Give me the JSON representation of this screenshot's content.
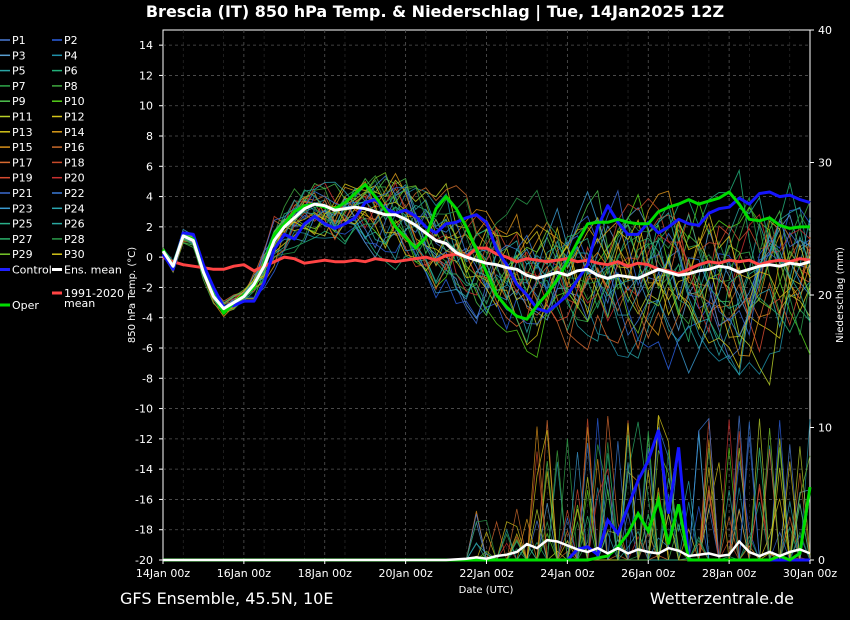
{
  "chart_data": {
    "type": "line",
    "title": "Brescia  (IT)  850 hPa Temp. & Niederschlag | Tue, 14Jan2025 12Z",
    "ylabel": "850 hPa Temp. (°C)",
    "y2label": "Niederschlag (mm)",
    "xlabel": "Date (UTC)",
    "ylim": [
      -20,
      15
    ],
    "y2lim": [
      0,
      40
    ],
    "xlim": [
      0,
      16
    ],
    "x_ticks": [
      {
        "x": 0,
        "label": "14Jan 00z"
      },
      {
        "x": 2,
        "label": "16Jan 00z"
      },
      {
        "x": 4,
        "label": "18Jan 00z"
      },
      {
        "x": 6,
        "label": "20Jan 00z"
      },
      {
        "x": 8,
        "label": "22Jan 00z"
      },
      {
        "x": 10,
        "label": "24Jan 00z"
      },
      {
        "x": 12,
        "label": "26Jan 00z"
      },
      {
        "x": 14,
        "label": "28Jan 00z"
      },
      {
        "x": 16,
        "label": "30Jan 00z"
      }
    ],
    "y_ticks": [
      14,
      12,
      10,
      8,
      6,
      4,
      2,
      0,
      -2,
      -4,
      -6,
      -8,
      -10,
      -12,
      -14,
      -16,
      -18,
      -20
    ],
    "y2_ticks": [
      40,
      30,
      20,
      10,
      0
    ],
    "grid": true,
    "legend_position": "left",
    "legend": [
      [
        "P1",
        "P2"
      ],
      [
        "P3",
        "P4"
      ],
      [
        "P5",
        "P6"
      ],
      [
        "P7",
        "P8"
      ],
      [
        "P9",
        "P10"
      ],
      [
        "P11",
        "P12"
      ],
      [
        "P13",
        "P14"
      ],
      [
        "P15",
        "P16"
      ],
      [
        "P17",
        "P18"
      ],
      [
        "P19",
        "P20"
      ],
      [
        "P21",
        "P22"
      ],
      [
        "P23",
        "P24"
      ],
      [
        "P25",
        "P26"
      ],
      [
        "P27",
        "P28"
      ],
      [
        "P29",
        "P30"
      ],
      [
        "Control",
        "Ens. mean"
      ]
    ],
    "legend_colors": [
      [
        "#4a7bd6",
        "#2a5fe0"
      ],
      [
        "#5a9fd0",
        "#1f8fa8"
      ],
      [
        "#2aa5a5",
        "#22b07a"
      ],
      [
        "#2ea64a",
        "#3fa83f"
      ],
      [
        "#4fc44f",
        "#55d11a"
      ],
      [
        "#b8cf2a",
        "#d4c41a"
      ],
      [
        "#d4c41a",
        "#d89a1a"
      ],
      [
        "#d8901a",
        "#c96a2a"
      ],
      [
        "#d86a30",
        "#c84a2a"
      ],
      [
        "#d64a30",
        "#c83030"
      ],
      [
        "#3a6ad0",
        "#3a7ad8"
      ],
      [
        "#3a9ad0",
        "#2aa5b0"
      ],
      [
        "#2ab08a",
        "#2aa8a0"
      ],
      [
        "#2ab06a",
        "#2a9a4a"
      ],
      [
        "#78c82a",
        "#d4c41a"
      ],
      [
        "#2020ff",
        "#ffffff"
      ]
    ],
    "legend_extra": [
      {
        "label": "1991-2020",
        "label2": "mean",
        "color": "#ff4444"
      },
      {
        "label": "Oper",
        "color": "#00dd00"
      }
    ],
    "series": [
      {
        "name": "Control",
        "color": "#1515ff",
        "x": [
          0,
          0.25,
          0.5,
          0.75,
          1,
          1.25,
          1.5,
          1.75,
          2,
          2.25,
          2.5,
          2.75,
          3,
          3.25,
          3.5,
          3.75,
          4,
          4.25,
          4.5,
          4.75,
          5,
          5.25,
          5.5,
          5.75,
          6,
          6.25,
          6.5,
          6.75,
          7,
          7.25,
          7.5,
          7.75,
          8,
          8.25,
          8.5,
          8.75,
          9,
          9.25,
          9.5,
          9.75,
          10,
          10.25,
          10.5,
          10.75,
          11,
          11.25,
          11.5,
          11.75,
          12,
          12.25,
          12.5,
          12.75,
          13,
          13.25,
          13.5,
          13.75,
          14,
          14.25,
          14.5,
          14.75,
          15,
          15.25,
          15.5,
          15.75,
          16
        ],
        "y": [
          0.2,
          -0.8,
          1.6,
          1.5,
          -0.5,
          -2.0,
          -3.3,
          -3.2,
          -2.9,
          -2.9,
          -1.7,
          0.5,
          1.5,
          1.2,
          2.2,
          2.7,
          2.2,
          1.9,
          2.2,
          2.6,
          3.6,
          3.8,
          3.2,
          2.9,
          3.1,
          2.7,
          2.0,
          1.6,
          2.2,
          2.3,
          2.6,
          2.8,
          2.3,
          0.5,
          -0.5,
          -1.8,
          -2.5,
          -3.4,
          -3.6,
          -3.1,
          -2.5,
          -1.5,
          -0.5,
          2.0,
          3.4,
          2.3,
          1.5,
          1.5,
          2.3,
          1.6,
          2.0,
          2.5,
          2.2,
          2.1,
          2.9,
          3.2,
          3.3,
          3.9,
          3.5,
          4.2,
          4.3,
          4.0,
          4.1,
          3.8,
          3.6
        ]
      },
      {
        "name": "Oper",
        "color": "#00dd00",
        "x": [
          0,
          0.25,
          0.5,
          0.75,
          1,
          1.25,
          1.5,
          1.75,
          2,
          2.25,
          2.5,
          2.75,
          3,
          3.25,
          3.5,
          3.75,
          4,
          4.25,
          4.5,
          4.75,
          5,
          5.25,
          5.5,
          5.75,
          6,
          6.25,
          6.5,
          6.75,
          7,
          7.25,
          7.5,
          7.75,
          8,
          8.25,
          8.5,
          8.75,
          9,
          9.25,
          9.5,
          9.75,
          10,
          10.25,
          10.5,
          10.75,
          11,
          11.25,
          11.5,
          11.75,
          12,
          12.25,
          12.5,
          12.75,
          13,
          13.25,
          13.5,
          13.75,
          14,
          14.25,
          14.5,
          14.75,
          15,
          15.25,
          15.5,
          15.75,
          16
        ],
        "y": [
          0.5,
          -0.6,
          1.4,
          1.2,
          -1.0,
          -2.5,
          -3.7,
          -3.0,
          -2.5,
          -2.0,
          -0.5,
          1.5,
          2.2,
          3.0,
          3.4,
          3.5,
          3.3,
          3.2,
          3.6,
          4.2,
          4.8,
          4.0,
          3.1,
          2.0,
          1.3,
          0.6,
          1.3,
          3.2,
          4.0,
          3.2,
          2.0,
          0.5,
          -1.0,
          -2.5,
          -3.3,
          -3.9,
          -4.1,
          -3.2,
          -2.4,
          -1.5,
          -0.3,
          1.0,
          2.2,
          2.3,
          2.3,
          2.5,
          2.3,
          2.2,
          2.2,
          3.0,
          3.3,
          3.5,
          3.8,
          3.5,
          3.7,
          3.9,
          4.3,
          3.5,
          2.5,
          2.4,
          2.6,
          2.1,
          1.9,
          2.0,
          2.0
        ]
      },
      {
        "name": "Ens. mean",
        "color": "#ffffff",
        "x": [
          0,
          0.25,
          0.5,
          0.75,
          1,
          1.25,
          1.5,
          1.75,
          2,
          2.25,
          2.5,
          2.75,
          3,
          3.25,
          3.5,
          3.75,
          4,
          4.25,
          4.5,
          4.75,
          5,
          5.25,
          5.5,
          5.75,
          6,
          6.25,
          6.5,
          6.75,
          7,
          7.25,
          7.5,
          7.75,
          8,
          8.25,
          8.5,
          8.75,
          9,
          9.25,
          9.5,
          9.75,
          10,
          10.25,
          10.5,
          10.75,
          11,
          11.25,
          11.5,
          11.75,
          12,
          12.25,
          12.5,
          12.75,
          13,
          13.25,
          13.5,
          13.75,
          14,
          14.25,
          14.5,
          14.75,
          15,
          15.25,
          15.5,
          15.75,
          16
        ],
        "y": [
          0.4,
          -0.6,
          1.4,
          1.1,
          -1.0,
          -2.6,
          -3.4,
          -3.0,
          -2.6,
          -1.8,
          -0.6,
          1.1,
          2.0,
          2.6,
          3.2,
          3.5,
          3.4,
          3.1,
          3.2,
          3.3,
          3.2,
          3.0,
          2.8,
          2.8,
          2.5,
          2.1,
          1.6,
          1.1,
          0.9,
          0.3,
          0.0,
          -0.2,
          -0.4,
          -0.5,
          -0.7,
          -0.8,
          -1.2,
          -1.4,
          -1.2,
          -1.0,
          -1.2,
          -0.9,
          -0.8,
          -1.2,
          -1.4,
          -1.2,
          -1.3,
          -1.4,
          -1.1,
          -0.8,
          -1.0,
          -1.2,
          -1.1,
          -0.9,
          -0.8,
          -0.6,
          -0.7,
          -1.0,
          -0.8,
          -0.6,
          -0.5,
          -0.6,
          -0.4,
          -0.5,
          -0.3
        ]
      },
      {
        "name": "1991-2020 mean",
        "color": "#ff4444",
        "x": [
          0,
          0.25,
          0.5,
          0.75,
          1,
          1.25,
          1.5,
          1.75,
          2,
          2.25,
          2.5,
          2.75,
          3,
          3.25,
          3.5,
          3.75,
          4,
          4.25,
          4.5,
          4.75,
          5,
          5.25,
          5.5,
          5.75,
          6,
          6.25,
          6.5,
          6.75,
          7,
          7.25,
          7.5,
          7.75,
          8,
          8.25,
          8.5,
          8.75,
          9,
          9.25,
          9.5,
          9.75,
          10,
          10.25,
          10.5,
          10.75,
          11,
          11.25,
          11.5,
          11.75,
          12,
          12.25,
          12.5,
          12.75,
          13,
          13.25,
          13.5,
          13.75,
          14,
          14.25,
          14.5,
          14.75,
          15,
          15.25,
          15.5,
          15.75,
          16
        ],
        "y": [
          0.0,
          -0.3,
          -0.5,
          -0.6,
          -0.7,
          -0.8,
          -0.8,
          -0.6,
          -0.5,
          -0.9,
          -0.6,
          -0.3,
          0.0,
          -0.1,
          -0.4,
          -0.3,
          -0.2,
          -0.3,
          -0.3,
          -0.2,
          -0.3,
          -0.1,
          -0.2,
          -0.3,
          -0.2,
          -0.1,
          0.0,
          -0.2,
          0.1,
          0.2,
          0.0,
          0.6,
          0.6,
          0.2,
          0.0,
          -0.3,
          -0.1,
          -0.2,
          -0.3,
          -0.2,
          -0.1,
          -0.3,
          -0.2,
          -0.4,
          -0.5,
          -0.3,
          -0.6,
          -0.4,
          -0.5,
          -0.8,
          -0.9,
          -1.1,
          -0.8,
          -0.5,
          -0.3,
          -0.4,
          -0.2,
          -0.3,
          -0.2,
          -0.5,
          -0.3,
          -0.2,
          -0.3,
          -0.1,
          -0.2
        ]
      }
    ],
    "precip_series": [
      {
        "name": "Control",
        "color": "#1515ff",
        "x": [
          0,
          7.5,
          8.5,
          9,
          9.5,
          10,
          10.25,
          10.5,
          10.75,
          11,
          11.25,
          11.5,
          11.75,
          12,
          12.25,
          12.5,
          12.75,
          13,
          13.5,
          14,
          14.5,
          15,
          15.5,
          16
        ],
        "y": [
          0,
          0,
          0,
          0,
          0,
          0,
          0.8,
          1,
          0.4,
          3.0,
          2.0,
          4,
          6,
          7.5,
          9.8,
          3.5,
          8.5,
          0,
          0,
          0,
          0,
          0,
          0,
          0
        ]
      },
      {
        "name": "Oper",
        "color": "#00dd00",
        "x": [
          0,
          7.5,
          8.5,
          9,
          10,
          10.5,
          11,
          11.25,
          11.5,
          11.75,
          12,
          12.25,
          12.5,
          12.75,
          13,
          13.5,
          14,
          14.5,
          15,
          15.25,
          15.5,
          15.75,
          16
        ],
        "y": [
          0,
          0,
          0,
          0,
          0,
          0,
          0.3,
          1.0,
          2.0,
          3.5,
          2.2,
          4.5,
          1.2,
          4.2,
          0,
          0,
          0,
          0,
          0,
          0.3,
          0,
          0.5,
          5.5
        ]
      },
      {
        "name": "Ens. mean",
        "color": "#ffffff",
        "x": [
          0,
          6,
          7,
          7.5,
          7.75,
          8,
          8.25,
          8.5,
          8.75,
          9,
          9.25,
          9.5,
          9.75,
          10,
          10.25,
          10.5,
          10.75,
          11,
          11.25,
          11.5,
          11.75,
          12,
          12.25,
          12.5,
          12.75,
          13,
          13.25,
          13.5,
          13.75,
          14,
          14.25,
          14.5,
          14.75,
          15,
          15.25,
          15.5,
          15.75,
          16
        ],
        "y": [
          0,
          0,
          0,
          0.1,
          0.2,
          0.1,
          0.3,
          0.4,
          0.6,
          1.2,
          0.9,
          1.5,
          1.4,
          1.1,
          0.8,
          0.6,
          0.9,
          0.5,
          0.9,
          0.5,
          0.8,
          0.6,
          0.5,
          0.9,
          0.7,
          0.3,
          0.4,
          0.5,
          0.3,
          0.4,
          1.4,
          0.6,
          0.3,
          0.6,
          0.3,
          0.6,
          0.8,
          0.5
        ]
      }
    ]
  },
  "footer_left": "GFS Ensemble, 45.5N, 10E",
  "footer_right": "Wetterzentrale.de"
}
